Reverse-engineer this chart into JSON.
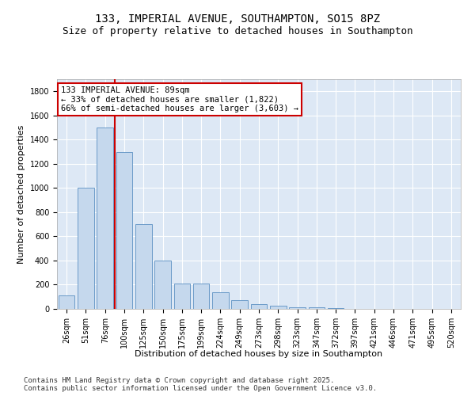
{
  "title_line1": "133, IMPERIAL AVENUE, SOUTHAMPTON, SO15 8PZ",
  "title_line2": "Size of property relative to detached houses in Southampton",
  "xlabel": "Distribution of detached houses by size in Southampton",
  "ylabel": "Number of detached properties",
  "categories": [
    "26sqm",
    "51sqm",
    "76sqm",
    "100sqm",
    "125sqm",
    "150sqm",
    "175sqm",
    "199sqm",
    "224sqm",
    "249sqm",
    "273sqm",
    "298sqm",
    "323sqm",
    "347sqm",
    "372sqm",
    "397sqm",
    "421sqm",
    "446sqm",
    "471sqm",
    "495sqm",
    "520sqm"
  ],
  "values": [
    110,
    1000,
    1500,
    1300,
    700,
    400,
    210,
    210,
    135,
    75,
    40,
    25,
    15,
    10,
    5,
    2,
    1,
    1,
    0,
    0,
    0
  ],
  "bar_color": "#c5d8ed",
  "bar_edge_color": "#5a8fc2",
  "vline_color": "#cc0000",
  "vline_x_index": 2,
  "annotation_text": "133 IMPERIAL AVENUE: 89sqm\n← 33% of detached houses are smaller (1,822)\n66% of semi-detached houses are larger (3,603) →",
  "annotation_box_color": "#ffffff",
  "annotation_box_edge": "#cc0000",
  "ylim": [
    0,
    1900
  ],
  "yticks": [
    0,
    200,
    400,
    600,
    800,
    1000,
    1200,
    1400,
    1600,
    1800
  ],
  "background_color": "#dde8f5",
  "grid_color": "#ffffff",
  "fig_background": "#ffffff",
  "footer_line1": "Contains HM Land Registry data © Crown copyright and database right 2025.",
  "footer_line2": "Contains public sector information licensed under the Open Government Licence v3.0.",
  "title_fontsize": 10,
  "subtitle_fontsize": 9,
  "axis_label_fontsize": 8,
  "tick_fontsize": 7,
  "annotation_fontsize": 7.5,
  "footer_fontsize": 6.5
}
